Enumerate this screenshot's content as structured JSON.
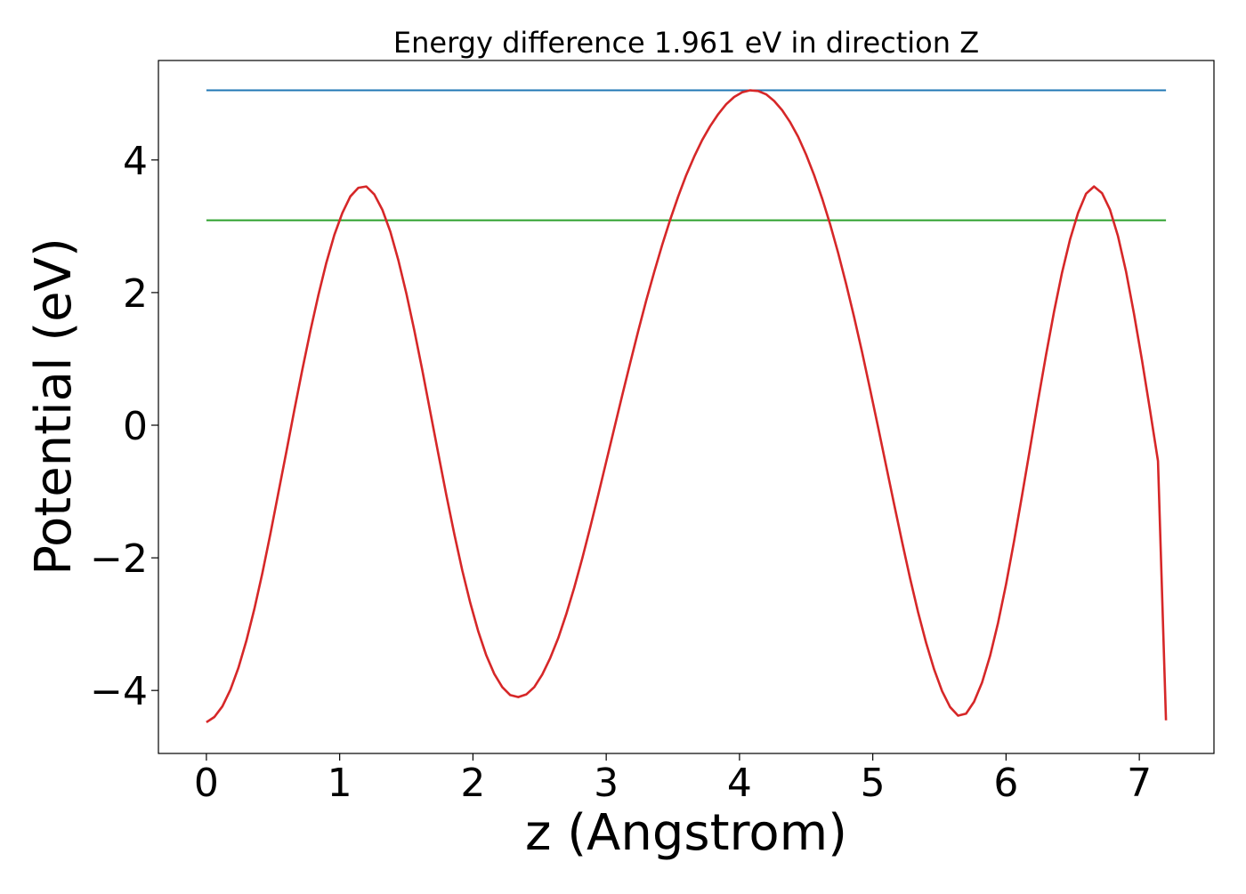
{
  "chart_data": {
    "type": "line",
    "title": "Energy difference 1.961 eV in direction Z",
    "xlabel": "z (Angstrom)",
    "ylabel": "Potential (eV)",
    "xlim": [
      -0.36,
      7.56
    ],
    "ylim": [
      -4.95,
      5.5
    ],
    "xticks": [
      0,
      1,
      2,
      3,
      4,
      5,
      6,
      7
    ],
    "xtick_labels": [
      "0",
      "1",
      "2",
      "3",
      "4",
      "5",
      "6",
      "7"
    ],
    "yticks": [
      -4,
      -2,
      0,
      2,
      4
    ],
    "ytick_labels": [
      "−4",
      "−2",
      "0",
      "2",
      "4"
    ],
    "grid": false,
    "colors": {
      "potential": "#d62728",
      "max_line": "#1f77b4",
      "ref_line": "#2ca02c",
      "axes": "#000000"
    },
    "series": [
      {
        "name": "potential",
        "x": [
          0.0,
          0.06,
          0.12,
          0.18,
          0.24,
          0.3,
          0.36,
          0.42,
          0.48,
          0.54,
          0.6,
          0.66,
          0.72,
          0.78,
          0.84,
          0.9,
          0.96,
          1.02,
          1.08,
          1.14,
          1.2,
          1.26,
          1.32,
          1.38,
          1.44,
          1.5,
          1.56,
          1.62,
          1.68,
          1.74,
          1.8,
          1.86,
          1.92,
          1.98,
          2.04,
          2.1,
          2.16,
          2.22,
          2.28,
          2.34,
          2.4,
          2.46,
          2.52,
          2.58,
          2.64,
          2.7,
          2.76,
          2.82,
          2.88,
          2.94,
          3.0,
          3.06,
          3.12,
          3.18,
          3.24,
          3.3,
          3.36,
          3.42,
          3.48,
          3.54,
          3.6,
          3.66,
          3.72,
          3.78,
          3.84,
          3.9,
          3.96,
          4.02,
          4.08,
          4.14,
          4.2,
          4.26,
          4.32,
          4.38,
          4.44,
          4.5,
          4.56,
          4.62,
          4.68,
          4.74,
          4.8,
          4.86,
          4.92,
          4.98,
          5.04,
          5.1,
          5.16,
          5.22,
          5.28,
          5.34,
          5.4,
          5.46,
          5.52,
          5.58,
          5.64,
          5.7,
          5.76,
          5.82,
          5.88,
          5.94,
          6.0,
          6.06,
          6.12,
          6.18,
          6.24,
          6.3,
          6.36,
          6.42,
          6.48,
          6.54,
          6.6,
          6.66,
          6.72,
          6.78,
          6.84,
          6.9,
          6.96,
          7.02,
          7.08,
          7.14,
          7.2
        ],
        "y": [
          -4.48,
          -4.4,
          -4.24,
          -3.99,
          -3.66,
          -3.25,
          -2.77,
          -2.23,
          -1.64,
          -1.02,
          -0.4,
          0.23,
          0.84,
          1.42,
          1.96,
          2.45,
          2.87,
          3.2,
          3.45,
          3.58,
          3.6,
          3.48,
          3.25,
          2.92,
          2.49,
          1.99,
          1.43,
          0.83,
          0.2,
          -0.43,
          -1.05,
          -1.64,
          -2.19,
          -2.68,
          -3.11,
          -3.47,
          -3.75,
          -3.95,
          -4.07,
          -4.1,
          -4.06,
          -3.95,
          -3.76,
          -3.51,
          -3.21,
          -2.85,
          -2.45,
          -2.01,
          -1.54,
          -1.05,
          -0.55,
          -0.05,
          0.45,
          0.94,
          1.42,
          1.88,
          2.31,
          2.72,
          3.1,
          3.45,
          3.77,
          4.05,
          4.3,
          4.51,
          4.69,
          4.84,
          4.95,
          5.02,
          5.05,
          5.04,
          4.99,
          4.89,
          4.75,
          4.57,
          4.35,
          4.08,
          3.77,
          3.42,
          3.03,
          2.6,
          2.13,
          1.63,
          1.1,
          0.54,
          -0.03,
          -0.61,
          -1.19,
          -1.76,
          -2.31,
          -2.82,
          -3.28,
          -3.68,
          -4.01,
          -4.25,
          -4.38,
          -4.35,
          -4.17,
          -3.88,
          -3.48,
          -2.98,
          -2.4,
          -1.75,
          -1.06,
          -0.35,
          0.37,
          1.06,
          1.71,
          2.3,
          2.8,
          3.2,
          3.49,
          3.6,
          3.5,
          3.25,
          2.85,
          2.32,
          1.68,
          0.98,
          0.23,
          -0.54,
          -4.45
        ]
      },
      {
        "name": "max_line",
        "x": [
          0.0,
          7.2
        ],
        "y": [
          5.05,
          5.05
        ]
      },
      {
        "name": "ref_line",
        "x": [
          0.0,
          7.2
        ],
        "y": [
          3.09,
          3.09
        ]
      }
    ]
  }
}
